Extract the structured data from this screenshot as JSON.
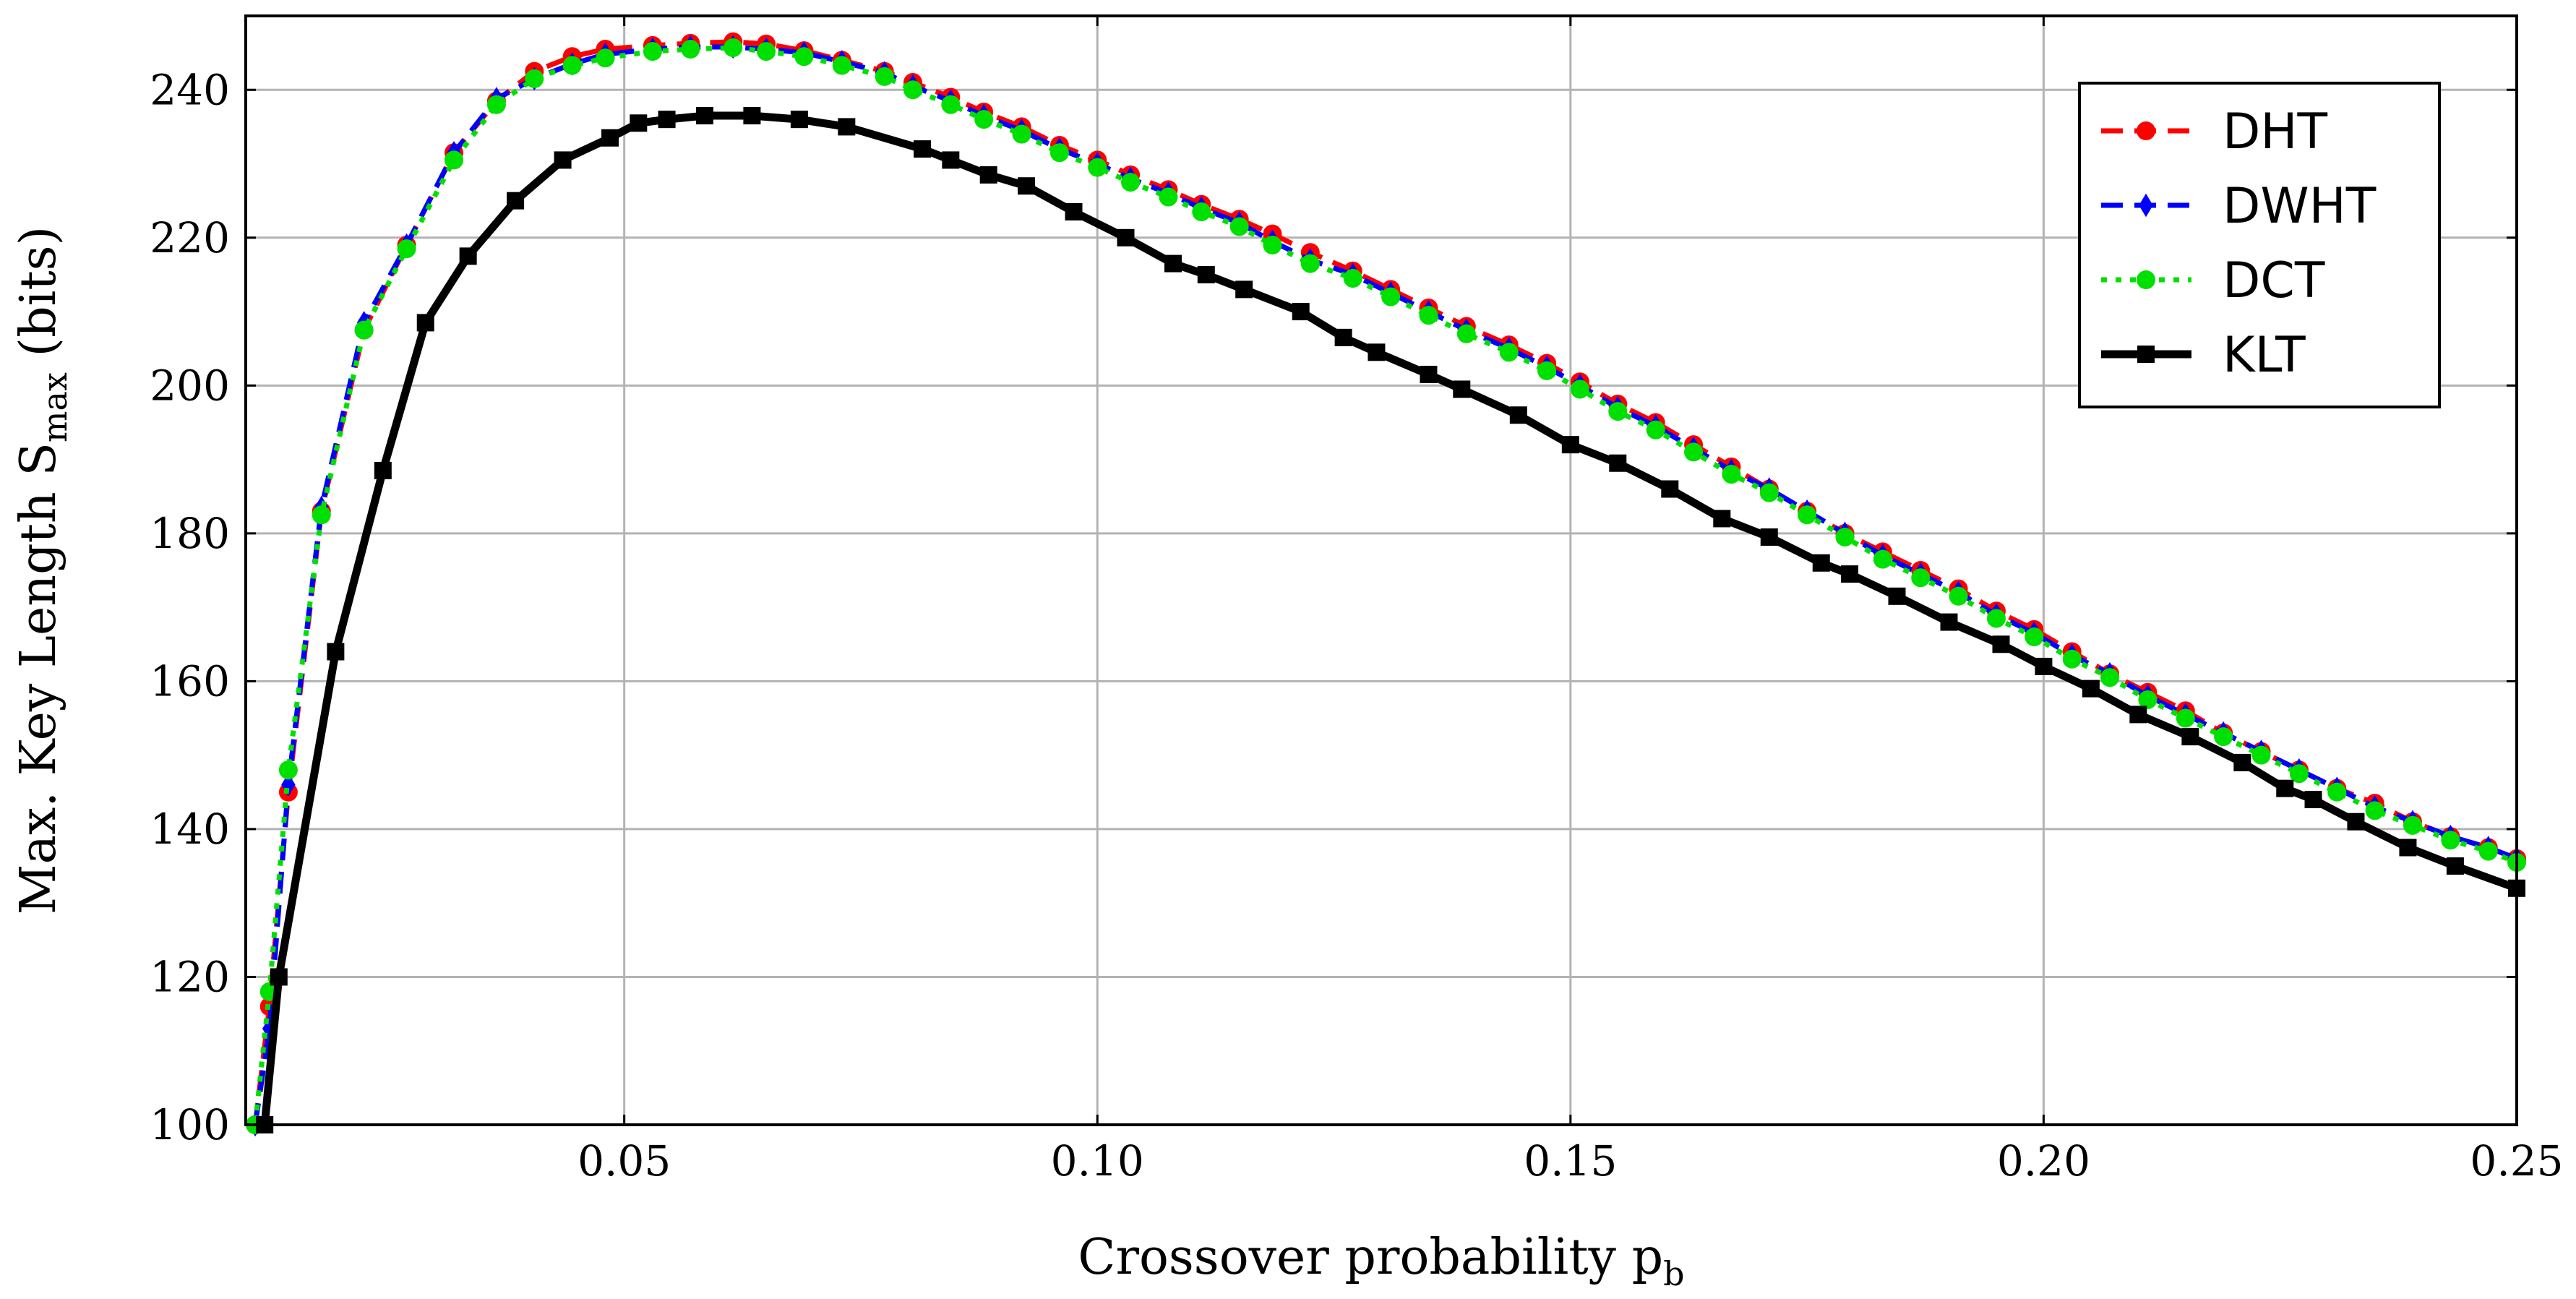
{
  "chart_data": {
    "type": "line",
    "title": "",
    "xlabel": "Crossover probability p",
    "xlabel_sub": "b",
    "ylabel": "Max. Key Length S",
    "ylabel_sub": "max",
    "ylabel_suffix": " (bits)",
    "xlim": [
      0.01,
      0.25
    ],
    "ylim": [
      100,
      250
    ],
    "xticks": [
      0.05,
      0.1,
      0.15,
      0.2,
      0.25
    ],
    "xtick_labels": [
      "0.05",
      "0.10",
      "0.15",
      "0.20",
      "0.25"
    ],
    "yticks": [
      100,
      120,
      140,
      160,
      180,
      200,
      220,
      240
    ],
    "ytick_labels": [
      "100",
      "120",
      "140",
      "160",
      "180",
      "200",
      "220",
      "240"
    ],
    "grid": true,
    "legend_position": "top-right",
    "series": [
      {
        "name": "DHT",
        "color": "#ff0000",
        "line_style": "dashed",
        "marker": "circle",
        "x": [
          0.011,
          0.0125,
          0.0145,
          0.018,
          0.0225,
          0.027,
          0.032,
          0.0365,
          0.0405,
          0.0445,
          0.048,
          0.053,
          0.057,
          0.0615,
          0.065,
          0.069,
          0.073,
          0.0775,
          0.0805,
          0.0845,
          0.088,
          0.092,
          0.096,
          0.1,
          0.1035,
          0.1075,
          0.111,
          0.115,
          0.1185,
          0.1225,
          0.127,
          0.131,
          0.135,
          0.139,
          0.1435,
          0.1475,
          0.151,
          0.155,
          0.159,
          0.163,
          0.167,
          0.171,
          0.175,
          0.179,
          0.183,
          0.187,
          0.191,
          0.195,
          0.199,
          0.203,
          0.207,
          0.211,
          0.215,
          0.219,
          0.223,
          0.227,
          0.231,
          0.235,
          0.239,
          0.243,
          0.247,
          0.25
        ],
        "y": [
          100,
          116,
          145,
          183,
          207.5,
          219,
          231.5,
          238.5,
          242.5,
          244.5,
          245.5,
          246,
          246.3,
          246.5,
          246.2,
          245.3,
          244,
          242.5,
          241,
          239,
          237,
          235,
          232.5,
          230.5,
          228.5,
          226.5,
          224.5,
          222.5,
          220.5,
          218,
          215.5,
          213,
          210.5,
          208,
          205.5,
          203,
          200.5,
          197.5,
          195,
          192,
          189,
          186,
          183,
          180,
          177.5,
          175,
          172.5,
          169.5,
          167,
          164,
          161,
          158.5,
          156,
          153,
          150.5,
          148,
          145.5,
          143.5,
          141,
          139,
          137.5,
          136
        ]
      },
      {
        "name": "DWHT",
        "color": "#0000ff",
        "line_style": "dashed",
        "marker": "diamond",
        "x": [
          0.011,
          0.0125,
          0.0145,
          0.018,
          0.0225,
          0.027,
          0.032,
          0.0365,
          0.0405,
          0.0445,
          0.048,
          0.053,
          0.057,
          0.0615,
          0.065,
          0.069,
          0.073,
          0.0775,
          0.0805,
          0.0845,
          0.088,
          0.092,
          0.096,
          0.1,
          0.1035,
          0.1075,
          0.111,
          0.115,
          0.1185,
          0.1225,
          0.127,
          0.131,
          0.135,
          0.139,
          0.1435,
          0.1475,
          0.151,
          0.155,
          0.159,
          0.163,
          0.167,
          0.171,
          0.175,
          0.179,
          0.183,
          0.187,
          0.191,
          0.195,
          0.199,
          0.203,
          0.207,
          0.211,
          0.215,
          0.219,
          0.223,
          0.227,
          0.231,
          0.235,
          0.239,
          0.243,
          0.247,
          0.25
        ],
        "y": [
          100,
          113,
          146,
          183.5,
          208.5,
          219,
          231.5,
          238.8,
          241.5,
          243.5,
          244.8,
          245.5,
          245.8,
          245.8,
          245.5,
          245,
          243.8,
          242.3,
          240.5,
          238.5,
          236.5,
          234.5,
          232,
          230,
          228,
          226,
          224,
          222,
          219.5,
          217,
          215,
          212.5,
          210,
          207.5,
          205,
          202.5,
          200,
          197,
          194.5,
          191.5,
          188.5,
          186,
          183,
          180,
          177,
          174.5,
          172,
          169,
          166.5,
          163.5,
          161,
          158,
          155.5,
          153,
          150.5,
          148,
          145.5,
          143,
          141,
          139,
          137.5,
          136
        ]
      },
      {
        "name": "DCT",
        "color": "#00e000",
        "line_style": "dotted",
        "marker": "circle",
        "x": [
          0.011,
          0.0125,
          0.0145,
          0.018,
          0.0225,
          0.027,
          0.032,
          0.0365,
          0.0405,
          0.0445,
          0.048,
          0.053,
          0.057,
          0.0615,
          0.065,
          0.069,
          0.073,
          0.0775,
          0.0805,
          0.0845,
          0.088,
          0.092,
          0.096,
          0.1,
          0.1035,
          0.1075,
          0.111,
          0.115,
          0.1185,
          0.1225,
          0.127,
          0.131,
          0.135,
          0.139,
          0.1435,
          0.1475,
          0.151,
          0.155,
          0.159,
          0.163,
          0.167,
          0.171,
          0.175,
          0.179,
          0.183,
          0.187,
          0.191,
          0.195,
          0.199,
          0.203,
          0.207,
          0.211,
          0.215,
          0.219,
          0.223,
          0.227,
          0.231,
          0.235,
          0.239,
          0.243,
          0.247,
          0.25
        ],
        "y": [
          100,
          118,
          148,
          182.5,
          207.5,
          218.5,
          230.5,
          238,
          241.5,
          243.3,
          244.3,
          245.2,
          245.5,
          245.7,
          245.2,
          244.5,
          243.3,
          241.8,
          240,
          238,
          236,
          234,
          231.5,
          229.5,
          227.5,
          225.5,
          223.5,
          221.5,
          219,
          216.5,
          214.5,
          212,
          209.5,
          207,
          204.5,
          202,
          199.5,
          196.5,
          194,
          191,
          188,
          185.5,
          182.5,
          179.5,
          176.5,
          174,
          171.5,
          168.5,
          166,
          163,
          160.5,
          157.5,
          155,
          152.5,
          150,
          147.5,
          145,
          142.5,
          140.5,
          138.5,
          137,
          135.5
        ]
      },
      {
        "name": "KLT",
        "color": "#000000",
        "line_style": "solid",
        "marker": "square",
        "x": [
          0.012,
          0.0135,
          0.0195,
          0.0245,
          0.029,
          0.0335,
          0.0385,
          0.0435,
          0.0485,
          0.0515,
          0.0545,
          0.0585,
          0.0635,
          0.0685,
          0.0735,
          0.0815,
          0.0845,
          0.0885,
          0.0925,
          0.0975,
          0.103,
          0.108,
          0.1115,
          0.1155,
          0.1215,
          0.126,
          0.1295,
          0.135,
          0.1385,
          0.1445,
          0.15,
          0.155,
          0.1605,
          0.166,
          0.171,
          0.1765,
          0.1795,
          0.1845,
          0.19,
          0.1955,
          0.2,
          0.205,
          0.21,
          0.2155,
          0.221,
          0.2255,
          0.2285,
          0.233,
          0.2385,
          0.2435,
          0.25
        ],
        "y": [
          100,
          120,
          164,
          188.5,
          208.5,
          217.5,
          225,
          230.5,
          233.5,
          235.5,
          236,
          236.5,
          236.5,
          236,
          235,
          232,
          230.5,
          228.5,
          227,
          223.5,
          220,
          216.5,
          215,
          213,
          210,
          206.5,
          204.5,
          201.5,
          199.5,
          196,
          192,
          189.5,
          186,
          182,
          179.5,
          176,
          174.5,
          171.5,
          168,
          165,
          162,
          159,
          155.5,
          152.5,
          149,
          145.5,
          144,
          141,
          137.5,
          135,
          132
        ]
      }
    ]
  }
}
